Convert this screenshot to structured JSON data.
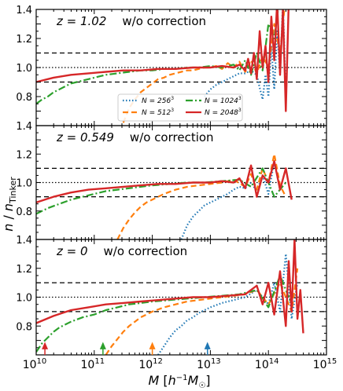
{
  "figure": {
    "ylabel": "n / n_Tinker",
    "xlabel": "M [h^-1 M_☉]"
  },
  "chart_data": {
    "type": "line",
    "xscale": "log",
    "xlim": [
      10000000000.0,
      1000000000000000.0
    ],
    "ylim": [
      0.6,
      1.4
    ],
    "xticks": [
      {
        "value": 10000000000.0,
        "base": "10",
        "exp": "10"
      },
      {
        "value": 100000000000.0,
        "base": "10",
        "exp": "11"
      },
      {
        "value": 1000000000000.0,
        "base": "10",
        "exp": "12"
      },
      {
        "value": 10000000000000.0,
        "base": "10",
        "exp": "13"
      },
      {
        "value": 100000000000000.0,
        "base": "10",
        "exp": "14"
      },
      {
        "value": 1000000000000000.0,
        "base": "10",
        "exp": "15"
      }
    ],
    "yticks": [
      {
        "value": 0.8,
        "label": "0.8"
      },
      {
        "value": 1.0,
        "label": "1.0"
      },
      {
        "value": 1.2,
        "label": "1.2"
      },
      {
        "value": 1.4,
        "label": "1.4"
      }
    ],
    "reference_lines": {
      "dotted": [
        1.0
      ],
      "dashed": [
        0.9,
        1.1
      ]
    },
    "legend": {
      "placement": "lower-center of top panel",
      "entries": [
        {
          "name": "N = 256³",
          "label_main": "N = 256",
          "label_exp": "3",
          "color": "#1f77b4",
          "style": "dotted"
        },
        {
          "name": "N = 1024³",
          "label_main": "N = 1024",
          "label_exp": "3",
          "color": "#2ca02c",
          "style": "dashdot"
        },
        {
          "name": "N = 512³",
          "label_main": "N = 512",
          "label_exp": "3",
          "color": "#ff7f0e",
          "style": "dashed"
        },
        {
          "name": "N = 2048³",
          "label_main": "N = 2048",
          "label_exp": "3",
          "color": "#d62728",
          "style": "solid"
        }
      ]
    },
    "panels": [
      {
        "label_z": "z = 1.02",
        "label_text": "w/o correction",
        "series": [
          {
            "name": "N = 256³",
            "color": "#1f77b4",
            "style": "dotted",
            "x": [
              12.9,
              13.0,
              13.1,
              13.2,
              13.3,
              13.4,
              13.5,
              13.6,
              13.7,
              13.8,
              13.85,
              13.9,
              13.95,
              14.0,
              14.05,
              14.1,
              14.15,
              14.2,
              14.25,
              14.3
            ],
            "y": [
              0.8,
              0.85,
              0.88,
              0.9,
              0.92,
              0.94,
              0.96,
              0.96,
              0.98,
              0.95,
              0.86,
              0.78,
              0.95,
              0.8,
              1.15,
              0.85,
              1.25,
              0.95,
              1.45,
              0.8
            ]
          },
          {
            "name": "N = 512³",
            "color": "#ff7f0e",
            "style": "dashed",
            "x": [
              11.5,
              11.6,
              11.7,
              11.8,
              11.9,
              12.0,
              12.1,
              12.2,
              12.3,
              12.4,
              12.5,
              12.6,
              12.7,
              12.8,
              12.9,
              13.0,
              13.1,
              13.2,
              13.3,
              13.4,
              13.5,
              13.6,
              13.7,
              13.8,
              13.9,
              14.0,
              14.1,
              14.2,
              14.3
            ],
            "y": [
              0.62,
              0.72,
              0.78,
              0.83,
              0.86,
              0.89,
              0.92,
              0.93,
              0.95,
              0.96,
              0.97,
              0.98,
              0.98,
              0.99,
              1.0,
              1.0,
              1.01,
              0.99,
              1.03,
              1.0,
              1.04,
              0.97,
              1.05,
              0.96,
              1.08,
              1.0,
              1.3,
              1.1,
              1.5
            ]
          },
          {
            "name": "N = 1024³",
            "color": "#2ca02c",
            "style": "dashdot",
            "x": [
              10.0,
              10.1,
              10.2,
              10.3,
              10.4,
              10.5,
              10.6,
              10.7,
              10.8,
              10.9,
              11.0,
              11.2,
              11.4,
              11.6,
              11.8,
              12.0,
              12.2,
              12.4,
              12.6,
              12.8,
              13.0,
              13.2,
              13.4,
              13.5,
              13.6,
              13.7,
              13.8,
              13.9,
              14.0,
              14.1,
              14.2,
              14.3
            ],
            "y": [
              0.75,
              0.78,
              0.8,
              0.83,
              0.85,
              0.87,
              0.89,
              0.9,
              0.91,
              0.92,
              0.93,
              0.95,
              0.96,
              0.97,
              0.98,
              0.98,
              0.99,
              0.99,
              1.0,
              1.0,
              1.01,
              1.0,
              1.02,
              0.98,
              1.05,
              0.95,
              1.1,
              0.98,
              1.3,
              1.2,
              1.5,
              1.4
            ]
          },
          {
            "name": "N = 2048³",
            "color": "#d62728",
            "style": "solid",
            "x": [
              10.0,
              10.3,
              10.6,
              10.9,
              11.2,
              11.5,
              11.8,
              12.1,
              12.4,
              12.7,
              13.0,
              13.2,
              13.4,
              13.5,
              13.6,
              13.65,
              13.7,
              13.75,
              13.8,
              13.85,
              13.9,
              13.95,
              14.0,
              14.05,
              14.1,
              14.15,
              14.2,
              14.25,
              14.3,
              14.35
            ],
            "y": [
              0.9,
              0.93,
              0.95,
              0.96,
              0.97,
              0.98,
              0.98,
              0.99,
              0.99,
              1.0,
              1.0,
              1.01,
              1.0,
              1.02,
              0.98,
              1.06,
              0.96,
              1.1,
              0.92,
              1.25,
              1.0,
              1.15,
              0.9,
              1.35,
              1.05,
              1.45,
              0.95,
              1.4,
              0.7,
              1.45
            ]
          }
        ]
      },
      {
        "label_z": "z = 0.549",
        "label_text": "w/o correction",
        "series": [
          {
            "name": "N = 256³",
            "color": "#1f77b4",
            "style": "dotted",
            "x": [
              12.5,
              12.6,
              12.7,
              12.8,
              12.9,
              13.0,
              13.1,
              13.2,
              13.3,
              13.4,
              13.5,
              13.6,
              13.7,
              13.8,
              13.9,
              14.0,
              14.1,
              14.2
            ],
            "y": [
              0.6,
              0.7,
              0.76,
              0.8,
              0.84,
              0.86,
              0.88,
              0.9,
              0.92,
              0.95,
              0.97,
              0.96,
              1.0,
              0.94,
              1.05,
              0.92,
              1.15,
              0.95
            ]
          },
          {
            "name": "N = 512³",
            "color": "#ff7f0e",
            "style": "dashed",
            "x": [
              11.4,
              11.5,
              11.6,
              11.7,
              11.8,
              11.9,
              12.0,
              12.2,
              12.4,
              12.6,
              12.8,
              13.0,
              13.2,
              13.4,
              13.6,
              13.7,
              13.8,
              13.9,
              14.0,
              14.1,
              14.2,
              14.3
            ],
            "y": [
              0.6,
              0.68,
              0.74,
              0.79,
              0.83,
              0.86,
              0.88,
              0.92,
              0.95,
              0.97,
              0.98,
              0.99,
              1.0,
              1.02,
              0.97,
              1.06,
              0.95,
              1.1,
              1.0,
              1.2,
              0.98,
              0.9
            ]
          },
          {
            "name": "N = 1024³",
            "color": "#2ca02c",
            "style": "dashdot",
            "x": [
              10.0,
              10.2,
              10.4,
              10.6,
              10.8,
              11.0,
              11.2,
              11.4,
              11.6,
              11.8,
              12.0,
              12.3,
              12.6,
              12.9,
              13.2,
              13.5,
              13.7,
              13.9,
              14.1,
              14.3
            ],
            "y": [
              0.78,
              0.82,
              0.85,
              0.88,
              0.9,
              0.92,
              0.94,
              0.95,
              0.96,
              0.97,
              0.98,
              0.99,
              1.0,
              1.0,
              1.01,
              1.02,
              0.97,
              1.1,
              0.9,
              1.0
            ]
          },
          {
            "name": "N = 2048³",
            "color": "#d62728",
            "style": "solid",
            "x": [
              10.0,
              10.3,
              10.6,
              10.9,
              11.2,
              11.5,
              11.8,
              12.1,
              12.4,
              12.7,
              13.0,
              13.2,
              13.4,
              13.5,
              13.6,
              13.7,
              13.8,
              13.9,
              14.0,
              14.1,
              14.2,
              14.3,
              14.4
            ],
            "y": [
              0.86,
              0.9,
              0.93,
              0.95,
              0.96,
              0.97,
              0.98,
              0.99,
              0.99,
              1.0,
              1.0,
              1.01,
              1.0,
              1.03,
              0.96,
              1.12,
              0.9,
              1.05,
              1.0,
              1.15,
              0.95,
              1.1,
              0.88
            ]
          }
        ]
      },
      {
        "label_z": "z = 0",
        "label_text": "w/o correction",
        "series": [
          {
            "name": "N = 256³",
            "color": "#1f77b4",
            "style": "dotted",
            "x": [
              12.1,
              12.2,
              12.3,
              12.4,
              12.5,
              12.6,
              12.7,
              12.8,
              12.9,
              13.0,
              13.2,
              13.4,
              13.6,
              13.8,
              14.0,
              14.1,
              14.2,
              14.3,
              14.4,
              14.5
            ],
            "y": [
              0.6,
              0.66,
              0.72,
              0.77,
              0.8,
              0.84,
              0.86,
              0.89,
              0.91,
              0.93,
              0.96,
              0.98,
              1.0,
              1.05,
              0.95,
              1.1,
              0.9,
              1.3,
              0.85,
              1.1
            ]
          },
          {
            "name": "N = 512³",
            "color": "#ff7f0e",
            "style": "dashed",
            "x": [
              11.2,
              11.3,
              11.4,
              11.5,
              11.6,
              11.7,
              11.8,
              11.9,
              12.0,
              12.2,
              12.4,
              12.6,
              12.8,
              13.0,
              13.2,
              13.4,
              13.6,
              13.8,
              14.0,
              14.2,
              14.4,
              14.5
            ],
            "y": [
              0.6,
              0.66,
              0.71,
              0.76,
              0.8,
              0.83,
              0.86,
              0.88,
              0.9,
              0.93,
              0.95,
              0.97,
              0.98,
              0.99,
              1.0,
              1.01,
              1.02,
              1.05,
              0.95,
              1.1,
              0.9,
              1.2
            ]
          },
          {
            "name": "N = 1024³",
            "color": "#2ca02c",
            "style": "dashdot",
            "x": [
              10.0,
              10.1,
              10.2,
              10.3,
              10.4,
              10.6,
              10.8,
              11.0,
              11.2,
              11.4,
              11.6,
              11.8,
              12.0,
              12.3,
              12.6,
              12.9,
              13.2,
              13.5,
              13.8,
              14.0,
              14.2,
              14.4
            ],
            "y": [
              0.62,
              0.68,
              0.72,
              0.76,
              0.79,
              0.83,
              0.86,
              0.88,
              0.91,
              0.93,
              0.95,
              0.96,
              0.97,
              0.98,
              0.99,
              1.0,
              1.01,
              1.02,
              1.05,
              0.93,
              1.15,
              0.95
            ]
          },
          {
            "name": "N = 2048³",
            "color": "#d62728",
            "style": "solid",
            "x": [
              10.0,
              10.3,
              10.6,
              10.9,
              11.2,
              11.5,
              11.8,
              12.1,
              12.4,
              12.7,
              13.0,
              13.3,
              13.6,
              13.8,
              13.9,
              14.0,
              14.1,
              14.2,
              14.3,
              14.35,
              14.4,
              14.45,
              14.5,
              14.55,
              14.6
            ],
            "y": [
              0.82,
              0.87,
              0.91,
              0.93,
              0.95,
              0.96,
              0.97,
              0.98,
              0.99,
              1.0,
              1.0,
              1.01,
              1.02,
              1.08,
              0.95,
              1.1,
              0.88,
              1.18,
              0.8,
              1.25,
              0.9,
              1.4,
              0.85,
              1.05,
              0.75
            ]
          }
        ]
      }
    ],
    "arrows": [
      {
        "x": 10.15,
        "color": "#d62728"
      },
      {
        "x": 11.15,
        "color": "#2ca02c"
      },
      {
        "x": 12.0,
        "color": "#ff7f0e"
      },
      {
        "x": 12.95,
        "color": "#1f77b4"
      }
    ]
  }
}
